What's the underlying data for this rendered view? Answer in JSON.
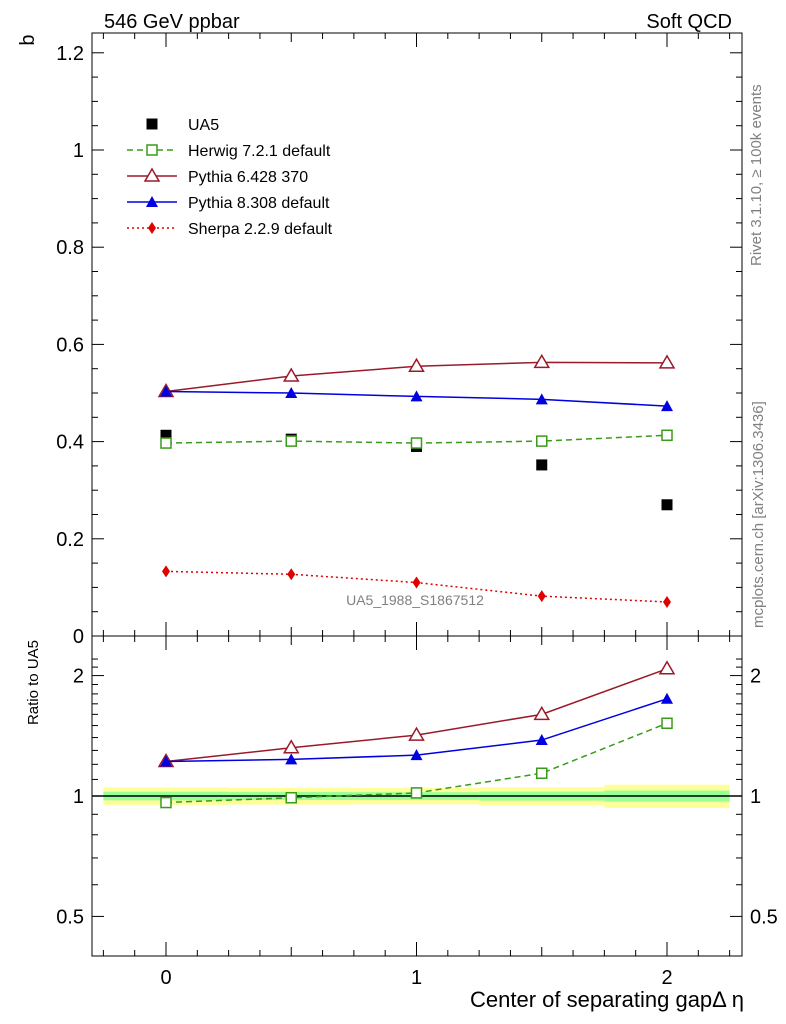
{
  "header": {
    "left": "546 GeV ppbar",
    "right": "Soft QCD"
  },
  "side_text": {
    "rivet": "Rivet 3.1.10, ≥ 100k events",
    "mcplots": "mcplots.cern.ch [arXiv:1306.3436]"
  },
  "analysis_label": "UA5_1988_S1867512",
  "colors": {
    "UA5": "#000000",
    "Herwig": "#3a9a1a",
    "Pythia6": "#9a1a2a",
    "Pythia8": "#0000e0",
    "Sherpa": "#e00000",
    "band_outer": "#ffff99",
    "band_inner": "#99ff99"
  },
  "chart_data": [
    {
      "type": "line",
      "ylabel": "b",
      "xlim": [
        -0.3,
        2.3
      ],
      "ylim": [
        0,
        1.25
      ],
      "yticks": [
        "0",
        "0.2",
        "0.4",
        "0.6",
        "0.8",
        "1",
        "1.2"
      ],
      "x": [
        0,
        0.5,
        1,
        1.5,
        2
      ],
      "series": [
        {
          "name": "UA5",
          "key": "UA5",
          "marker": "square-filled",
          "line": "none",
          "values": [
            0.413,
            0.405,
            0.39,
            0.352,
            0.27
          ]
        },
        {
          "name": "Herwig 7.2.1 default",
          "key": "Herwig",
          "marker": "square-open",
          "line": "dashed",
          "values": [
            0.397,
            0.401,
            0.397,
            0.401,
            0.413
          ]
        },
        {
          "name": "Pythia 6.428 370",
          "key": "Pythia6",
          "marker": "triangle-open",
          "line": "solid",
          "values": [
            0.503,
            0.535,
            0.555,
            0.563,
            0.562
          ]
        },
        {
          "name": "Pythia 8.308 default",
          "key": "Pythia8",
          "marker": "triangle-filled",
          "line": "solid",
          "values": [
            0.503,
            0.5,
            0.493,
            0.487,
            0.473
          ]
        },
        {
          "name": "Sherpa 2.2.9 default",
          "key": "Sherpa",
          "marker": "diamond-filled",
          "line": "dotted",
          "values": [
            0.133,
            0.127,
            0.11,
            0.082,
            0.07
          ]
        }
      ]
    },
    {
      "type": "line",
      "ylabel": "Ratio to UA5",
      "xlabel": "Center of separating gapΔ η",
      "xlim": [
        -0.3,
        2.3
      ],
      "ylim": [
        0.42,
        2.3
      ],
      "yscale": "log",
      "yticks": [
        "0.5",
        "1",
        "2"
      ],
      "xticks": [
        "0",
        "1",
        "2"
      ],
      "x": [
        0,
        0.5,
        1,
        1.5,
        2
      ],
      "band": {
        "bins": [
          [
            -0.25,
            0.25
          ],
          [
            0.25,
            0.75
          ],
          [
            0.75,
            1.25
          ],
          [
            1.25,
            1.75
          ],
          [
            1.75,
            2.25
          ]
        ],
        "outer": [
          [
            0.95,
            1.05
          ],
          [
            0.952,
            1.048
          ],
          [
            0.953,
            1.047
          ],
          [
            0.948,
            1.052
          ],
          [
            0.933,
            1.067
          ]
        ],
        "inner": [
          [
            0.975,
            1.025
          ],
          [
            0.977,
            1.023
          ],
          [
            0.978,
            1.022
          ],
          [
            0.974,
            1.026
          ],
          [
            0.968,
            1.032
          ]
        ]
      },
      "series": [
        {
          "name": "Herwig 7.2.1 default",
          "key": "Herwig",
          "marker": "square-open",
          "line": "dashed",
          "values": [
            0.963,
            0.99,
            1.018,
            1.14,
            1.52
          ]
        },
        {
          "name": "Pythia 6.428 370",
          "key": "Pythia6",
          "marker": "triangle-open",
          "line": "solid",
          "values": [
            1.22,
            1.32,
            1.42,
            1.6,
            2.08
          ]
        },
        {
          "name": "Pythia 8.308 default",
          "key": "Pythia8",
          "marker": "triangle-filled",
          "line": "solid",
          "values": [
            1.22,
            1.235,
            1.265,
            1.38,
            1.75
          ]
        }
      ]
    }
  ]
}
